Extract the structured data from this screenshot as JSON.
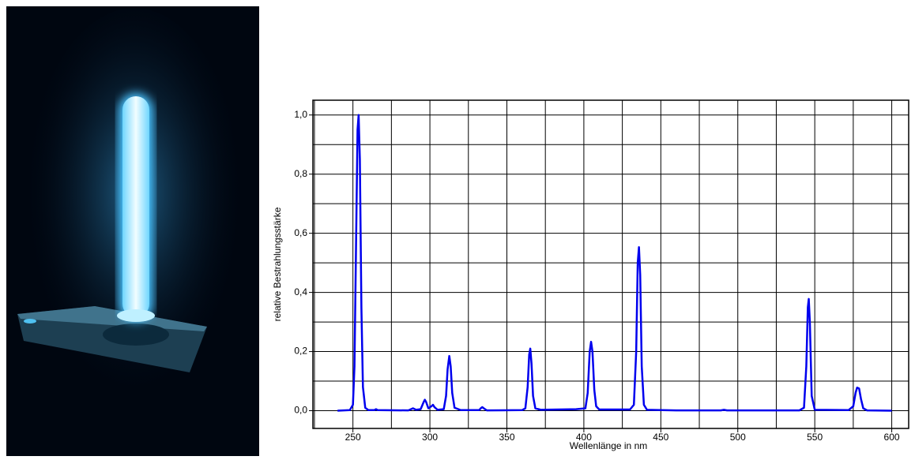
{
  "chart_data": {
    "type": "line",
    "xlabel": "Wellenlänge in nm",
    "ylabel": "relative Bestrahlungsstärke",
    "color": "#0000ee",
    "grid": true,
    "xlim": [
      224,
      611
    ],
    "ylim": [
      -0.06,
      1.05
    ],
    "xticks": [
      250,
      300,
      350,
      400,
      450,
      500,
      550,
      600
    ],
    "xgrid": [
      225,
      250,
      275,
      300,
      325,
      350,
      375,
      400,
      425,
      450,
      475,
      500,
      525,
      550,
      575,
      600
    ],
    "yticks": [
      {
        "value": 0,
        "label": "0,0"
      },
      {
        "value": 0.2,
        "label": "0,2"
      },
      {
        "value": 0.4,
        "label": "0,4"
      },
      {
        "value": 0.6,
        "label": "0,6"
      },
      {
        "value": 0.8,
        "label": "0,8"
      },
      {
        "value": 1,
        "label": "1,0"
      }
    ],
    "ygrid": [
      0,
      0.1,
      0.2,
      0.3,
      0.4,
      0.5,
      0.6,
      0.7,
      0.8,
      0.9,
      1
    ],
    "x": [
      240,
      248,
      250,
      251,
      252,
      253,
      253.7,
      254.5,
      255.5,
      256.5,
      258,
      260,
      264,
      265,
      266,
      286,
      289,
      291,
      294,
      296,
      296.7,
      297.5,
      299,
      301,
      302,
      303,
      305,
      309,
      310.5,
      311.5,
      312.6,
      313.5,
      314.5,
      316,
      320,
      332,
      333,
      334,
      335,
      337,
      360,
      362,
      363.5,
      364.5,
      365.2,
      366,
      367,
      368.5,
      372,
      395,
      401,
      402.5,
      403.8,
      404.7,
      405.6,
      406.8,
      408,
      410,
      430,
      432.5,
      434,
      435,
      435.8,
      436.6,
      437.6,
      439,
      441,
      460,
      489,
      491,
      493,
      540,
      543,
      544.5,
      545.5,
      546.1,
      546.8,
      548,
      550,
      572,
      575,
      576.5,
      577.5,
      578.8,
      580,
      581.5,
      584,
      600
    ],
    "values": [
      0,
      0.002,
      0.02,
      0.15,
      0.55,
      0.95,
      1.0,
      0.85,
      0.35,
      0.08,
      0.01,
      0.002,
      0.002,
      0.005,
      0.002,
      0.001,
      0.008,
      0.003,
      0.005,
      0.03,
      0.037,
      0.03,
      0.008,
      0.015,
      0.02,
      0.012,
      0.003,
      0.005,
      0.05,
      0.14,
      0.185,
      0.15,
      0.06,
      0.01,
      0.002,
      0.002,
      0.008,
      0.012,
      0.008,
      0.001,
      0.002,
      0.008,
      0.08,
      0.19,
      0.21,
      0.16,
      0.05,
      0.008,
      0.003,
      0.005,
      0.008,
      0.06,
      0.2,
      0.233,
      0.2,
      0.07,
      0.015,
      0.004,
      0.004,
      0.02,
      0.2,
      0.5,
      0.553,
      0.46,
      0.15,
      0.02,
      0.003,
      0.001,
      0.001,
      0.003,
      0.001,
      0.001,
      0.01,
      0.15,
      0.35,
      0.378,
      0.3,
      0.05,
      0.003,
      0.002,
      0.015,
      0.06,
      0.078,
      0.075,
      0.04,
      0.008,
      0.001,
      0
    ]
  }
}
